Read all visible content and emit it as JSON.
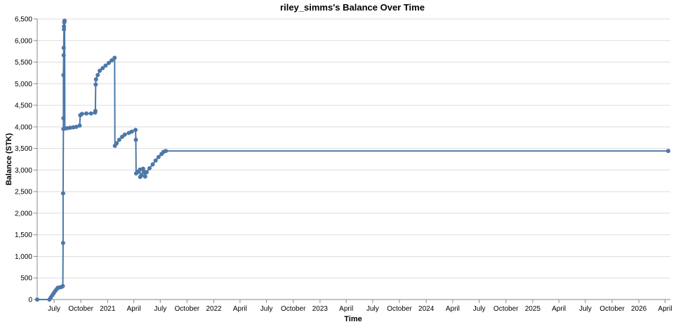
{
  "chart_data": {
    "type": "line",
    "title": "riley_simms's Balance Over Time",
    "xlabel": "Time",
    "ylabel": "Balance (STK)",
    "ylim": [
      0,
      6500
    ],
    "xlim": [
      "2020-05-04",
      "2026-04-12"
    ],
    "grid": true,
    "color": "#4c78a8",
    "y_ticks": [
      "0",
      "500",
      "1,000",
      "1,500",
      "2,000",
      "2,500",
      "3,000",
      "3,500",
      "4,000",
      "4,500",
      "5,000",
      "5,500",
      "6,000",
      "6,500"
    ],
    "x_ticks": [
      {
        "date": "2020-07-01",
        "label": "July"
      },
      {
        "date": "2020-10-01",
        "label": "October"
      },
      {
        "date": "2021-01-01",
        "label": "2021"
      },
      {
        "date": "2021-04-01",
        "label": "April"
      },
      {
        "date": "2021-07-01",
        "label": "July"
      },
      {
        "date": "2021-10-01",
        "label": "October"
      },
      {
        "date": "2022-01-01",
        "label": "2022"
      },
      {
        "date": "2022-04-01",
        "label": "April"
      },
      {
        "date": "2022-07-01",
        "label": "July"
      },
      {
        "date": "2022-10-01",
        "label": "October"
      },
      {
        "date": "2023-01-01",
        "label": "2023"
      },
      {
        "date": "2023-04-01",
        "label": "April"
      },
      {
        "date": "2023-07-01",
        "label": "July"
      },
      {
        "date": "2023-10-01",
        "label": "October"
      },
      {
        "date": "2024-01-01",
        "label": "2024"
      },
      {
        "date": "2024-04-01",
        "label": "April"
      },
      {
        "date": "2024-07-01",
        "label": "July"
      },
      {
        "date": "2024-10-01",
        "label": "October"
      },
      {
        "date": "2025-01-01",
        "label": "2025"
      },
      {
        "date": "2025-04-01",
        "label": "April"
      },
      {
        "date": "2025-07-01",
        "label": "July"
      },
      {
        "date": "2025-10-01",
        "label": "October"
      },
      {
        "date": "2026-01-01",
        "label": "2026"
      },
      {
        "date": "2026-04-01",
        "label": "April"
      }
    ],
    "points": [
      [
        "2020-05-04",
        0
      ],
      [
        "2020-06-15",
        0
      ],
      [
        "2020-06-20",
        50
      ],
      [
        "2020-06-25",
        100
      ],
      [
        "2020-06-30",
        150
      ],
      [
        "2020-07-05",
        200
      ],
      [
        "2020-07-10",
        240
      ],
      [
        "2020-07-14",
        275
      ],
      [
        "2020-07-20",
        280
      ],
      [
        "2020-07-26",
        290
      ],
      [
        "2020-07-31",
        310
      ],
      [
        "2020-08-01",
        1310
      ],
      [
        "2020-08-01",
        2460
      ],
      [
        "2020-08-02",
        3950
      ],
      [
        "2020-08-02",
        4200
      ],
      [
        "2020-08-02",
        5200
      ],
      [
        "2020-08-03",
        5660
      ],
      [
        "2020-08-03",
        5830
      ],
      [
        "2020-08-04",
        6260
      ],
      [
        "2020-08-04",
        6330
      ],
      [
        "2020-08-05",
        6420
      ],
      [
        "2020-08-06",
        6460
      ],
      [
        "2020-08-06",
        6440
      ],
      [
        "2020-08-07",
        3960
      ],
      [
        "2020-08-15",
        3970
      ],
      [
        "2020-08-25",
        3980
      ],
      [
        "2020-09-05",
        3990
      ],
      [
        "2020-09-15",
        4000
      ],
      [
        "2020-09-27",
        4030
      ],
      [
        "2020-09-29",
        4270
      ],
      [
        "2020-10-05",
        4300
      ],
      [
        "2020-10-20",
        4310
      ],
      [
        "2020-11-05",
        4310
      ],
      [
        "2020-11-19",
        4330
      ],
      [
        "2020-11-20",
        4370
      ],
      [
        "2020-11-21",
        4980
      ],
      [
        "2020-11-22",
        5100
      ],
      [
        "2020-11-28",
        5200
      ],
      [
        "2020-12-05",
        5300
      ],
      [
        "2020-12-15",
        5360
      ],
      [
        "2020-12-25",
        5420
      ],
      [
        "2021-01-05",
        5480
      ],
      [
        "2021-01-15",
        5540
      ],
      [
        "2021-01-25",
        5600
      ],
      [
        "2021-01-26",
        3560
      ],
      [
        "2021-02-01",
        3620
      ],
      [
        "2021-02-10",
        3700
      ],
      [
        "2021-02-20",
        3770
      ],
      [
        "2021-03-01",
        3820
      ],
      [
        "2021-03-15",
        3860
      ],
      [
        "2021-03-25",
        3890
      ],
      [
        "2021-04-07",
        3930
      ],
      [
        "2021-04-08",
        3700
      ],
      [
        "2021-04-09",
        2920
      ],
      [
        "2021-04-15",
        2960
      ],
      [
        "2021-04-22",
        3010
      ],
      [
        "2021-04-23",
        2840
      ],
      [
        "2021-04-28",
        2880
      ],
      [
        "2021-05-03",
        3030
      ],
      [
        "2021-05-06",
        2960
      ],
      [
        "2021-05-10",
        2850
      ],
      [
        "2021-05-15",
        2950
      ],
      [
        "2021-05-25",
        3040
      ],
      [
        "2021-06-05",
        3130
      ],
      [
        "2021-06-15",
        3220
      ],
      [
        "2021-06-25",
        3300
      ],
      [
        "2021-07-05",
        3370
      ],
      [
        "2021-07-12",
        3420
      ],
      [
        "2021-07-20",
        3440
      ],
      [
        "2026-04-12",
        3440
      ]
    ]
  }
}
